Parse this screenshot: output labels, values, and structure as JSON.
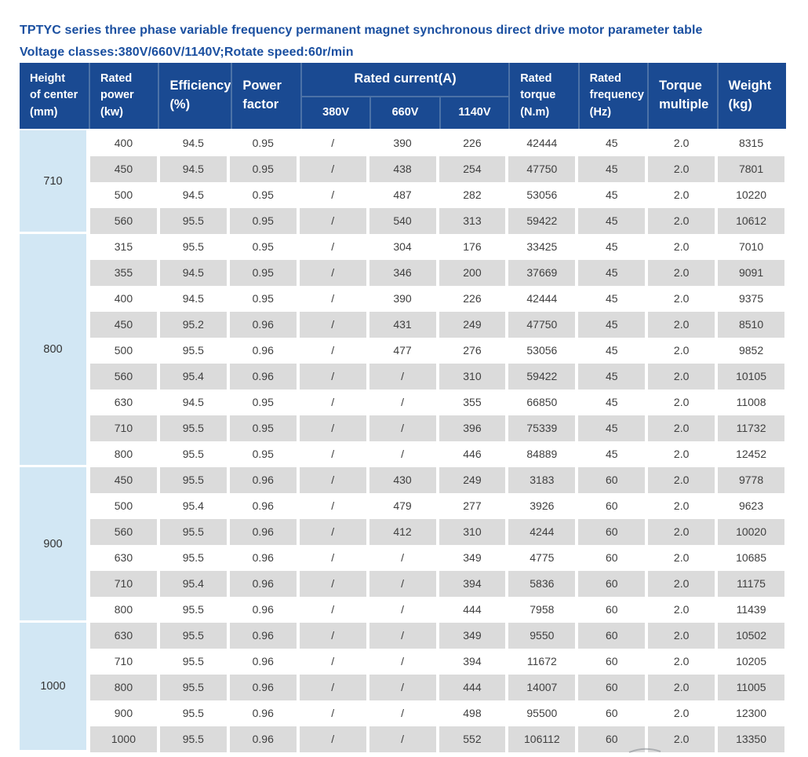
{
  "page": {
    "title": "TPTYC series three phase variable frequency permanent magnet synchronous direct drive motor parameter table",
    "subtitle": "Voltage classes:380V/660V/1140V;Rotate speed:60r/min"
  },
  "colors": {
    "header_bg": "#1a4a92",
    "header_separator": "#4c72a7",
    "group_column_bg": "#d2e7f4",
    "stripe_bg": "#dbdbdb",
    "title_text": "#1a4fa0",
    "cell_text": "#404040"
  },
  "table": {
    "columns": [
      {
        "key": "height-of-center",
        "label": "Height\nof center\n(mm)"
      },
      {
        "key": "rated-power",
        "label": "Rated\npower\n(kw)"
      },
      {
        "key": "efficiency",
        "label": "Efficiency\n(%)"
      },
      {
        "key": "power-factor",
        "label": "Power\nfactor"
      },
      {
        "key": "rated-current",
        "label": "Rated current(A)",
        "sub": [
          {
            "key": "current-380v",
            "label": "380V"
          },
          {
            "key": "current-660v",
            "label": "660V"
          },
          {
            "key": "current-1140v",
            "label": "1140V"
          }
        ]
      },
      {
        "key": "rated-torque",
        "label": "Rated\ntorque\n(N.m)"
      },
      {
        "key": "rated-frequency",
        "label": "Rated\nfrequency\n(Hz)"
      },
      {
        "key": "torque-multiple",
        "label": "Torque\nmultiple"
      },
      {
        "key": "weight",
        "label": "Weight\n(kg)"
      }
    ],
    "groups": [
      {
        "height": "710",
        "rows": [
          [
            "400",
            "94.5",
            "0.95",
            "/",
            "390",
            "226",
            "42444",
            "45",
            "2.0",
            "8315"
          ],
          [
            "450",
            "94.5",
            "0.95",
            "/",
            "438",
            "254",
            "47750",
            "45",
            "2.0",
            "7801"
          ],
          [
            "500",
            "94.5",
            "0.95",
            "/",
            "487",
            "282",
            "53056",
            "45",
            "2.0",
            "10220"
          ],
          [
            "560",
            "95.5",
            "0.95",
            "/",
            "540",
            "313",
            "59422",
            "45",
            "2.0",
            "10612"
          ]
        ]
      },
      {
        "height": "800",
        "rows": [
          [
            "315",
            "95.5",
            "0.95",
            "/",
            "304",
            "176",
            "33425",
            "45",
            "2.0",
            "7010"
          ],
          [
            "355",
            "94.5",
            "0.95",
            "/",
            "346",
            "200",
            "37669",
            "45",
            "2.0",
            "9091"
          ],
          [
            "400",
            "94.5",
            "0.95",
            "/",
            "390",
            "226",
            "42444",
            "45",
            "2.0",
            "9375"
          ],
          [
            "450",
            "95.2",
            "0.96",
            "/",
            "431",
            "249",
            "47750",
            "45",
            "2.0",
            "8510"
          ],
          [
            "500",
            "95.5",
            "0.96",
            "/",
            "477",
            "276",
            "53056",
            "45",
            "2.0",
            "9852"
          ],
          [
            "560",
            "95.4",
            "0.96",
            "/",
            "/",
            "310",
            "59422",
            "45",
            "2.0",
            "10105"
          ],
          [
            "630",
            "94.5",
            "0.95",
            "/",
            "/",
            "355",
            "66850",
            "45",
            "2.0",
            "11008"
          ],
          [
            "710",
            "95.5",
            "0.95",
            "/",
            "/",
            "396",
            "75339",
            "45",
            "2.0",
            "11732"
          ],
          [
            "800",
            "95.5",
            "0.95",
            "/",
            "/",
            "446",
            "84889",
            "45",
            "2.0",
            "12452"
          ]
        ]
      },
      {
        "height": "900",
        "rows": [
          [
            "450",
            "95.5",
            "0.96",
            "/",
            "430",
            "249",
            "3183",
            "60",
            "2.0",
            "9778"
          ],
          [
            "500",
            "95.4",
            "0.96",
            "/",
            "479",
            "277",
            "3926",
            "60",
            "2.0",
            "9623"
          ],
          [
            "560",
            "95.5",
            "0.96",
            "/",
            "412",
            "310",
            "4244",
            "60",
            "2.0",
            "10020"
          ],
          [
            "630",
            "95.5",
            "0.96",
            "/",
            "/",
            "349",
            "4775",
            "60",
            "2.0",
            "10685"
          ],
          [
            "710",
            "95.4",
            "0.96",
            "/",
            "/",
            "394",
            "5836",
            "60",
            "2.0",
            "11175"
          ],
          [
            "800",
            "95.5",
            "0.96",
            "/",
            "/",
            "444",
            "7958",
            "60",
            "2.0",
            "11439"
          ]
        ]
      },
      {
        "height": "1000",
        "rows": [
          [
            "630",
            "95.5",
            "0.96",
            "/",
            "/",
            "349",
            "9550",
            "60",
            "2.0",
            "10502"
          ],
          [
            "710",
            "95.5",
            "0.96",
            "/",
            "/",
            "394",
            "11672",
            "60",
            "2.0",
            "10205"
          ],
          [
            "800",
            "95.5",
            "0.96",
            "/",
            "/",
            "444",
            "14007",
            "60",
            "2.0",
            "11005"
          ],
          [
            "900",
            "95.5",
            "0.96",
            "/",
            "/",
            "498",
            "95500",
            "60",
            "2.0",
            "12300"
          ],
          [
            "1000",
            "95.5",
            "0.96",
            "/",
            "/",
            "552",
            "106112",
            "60",
            "2.0",
            "13350"
          ]
        ]
      }
    ]
  }
}
